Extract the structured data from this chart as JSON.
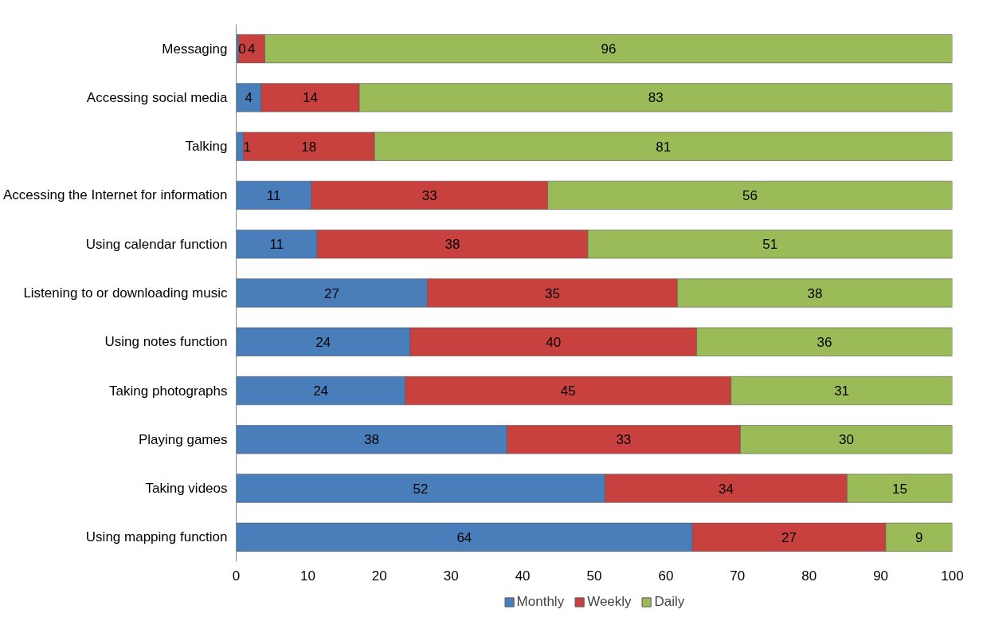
{
  "chart_data": {
    "type": "bar",
    "orientation": "horizontal",
    "stacked": true,
    "categories": [
      "Messaging",
      "Accessing social media",
      "Talking",
      "Accessing the Internet for information",
      "Using calendar function",
      "Listening to or downloading music",
      "Using notes function",
      "Taking photographs",
      "Playing games",
      "Taking videos",
      "Using mapping function"
    ],
    "series": [
      {
        "name": "Monthly",
        "color": "#4a7ebb",
        "values": [
          0.3,
          3.5,
          1.0,
          10.5,
          11.3,
          26.7,
          24.3,
          23.6,
          37.8,
          51.5,
          63.7
        ],
        "value_labels": [
          "0",
          "4",
          "1",
          "11",
          "11",
          "27",
          "24",
          "24",
          "38",
          "52",
          "64"
        ]
      },
      {
        "name": "Weekly",
        "color": "#c9413e",
        "values": [
          3.7,
          13.7,
          18.3,
          33.0,
          37.8,
          34.9,
          40.0,
          45.5,
          32.6,
          33.8,
          27.0
        ],
        "value_labels": [
          "4",
          "14",
          "18",
          "33",
          "38",
          "35",
          "40",
          "45",
          "33",
          "34",
          "27"
        ]
      },
      {
        "name": "Daily",
        "color": "#9bbb59",
        "values": [
          96.0,
          82.8,
          80.7,
          56.5,
          50.9,
          38.4,
          35.7,
          30.9,
          29.6,
          14.7,
          9.3
        ],
        "value_labels": [
          "96",
          "83",
          "81",
          "56",
          "51",
          "38",
          "36",
          "31",
          "30",
          "15",
          "9"
        ]
      }
    ],
    "xlim": [
      0,
      100
    ],
    "xticks": [
      0,
      10,
      20,
      30,
      40,
      50,
      60,
      70,
      80,
      90,
      100
    ],
    "grid": false,
    "legend": "bottom"
  }
}
